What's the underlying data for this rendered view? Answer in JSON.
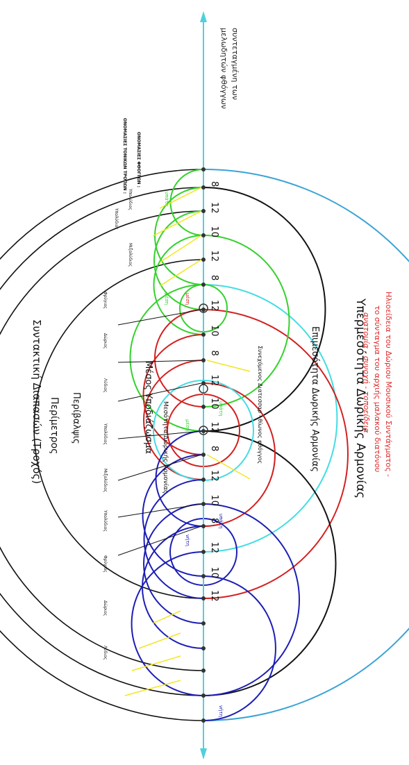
{
  "title": {
    "line1": "Ηλιοείδεια του Δώριου Μουσικού Συντάγματος -",
    "line2": "το σύνταγμα του αρχιής μαλακού διατόνου",
    "line3": "ανατομία - συνοχή - τοποείδεια"
  },
  "axis_label": {
    "line1": "συντεταγμένη των",
    "line2": "μελωδητών φθόγγων"
  },
  "row_heads": {
    "names": "ΟΝΟΜΑΣΙΕΣ ΦΘΟΓΓΩΝ :",
    "tones": "ΟΝΟΜΑΣΙΕΣ ΤΟΝΙΚΩΝ ΤΡΟΠΩΝ :"
  },
  "interval_numbers": [
    "8",
    "12",
    "10",
    "12",
    "8",
    "12",
    "10",
    "8",
    "12",
    "10",
    "12",
    "8",
    "12",
    "10",
    "8",
    "12",
    "10",
    "12"
  ],
  "arc_labels": {
    "hyper": "Υπερμεσότητα Δωρικής Αρμονίας",
    "epi": "Επιμεσότητα Δωρικής Αρμονίας",
    "mese": "Μεσότητα Δωρικής Αρμονίας",
    "synemm": "Συνεχόμενος Διατεσσαρ - θίωνος φθόγγος",
    "mesos": "Μέσος Υποδιάζωσμα",
    "peri_small": "Περίβαλψις",
    "perimetros": "Περίμετρος",
    "syntaktike": "Συντακτική Διαπασών (Τροχός)"
  },
  "small_labels": [
    "υπάτη",
    "μέση",
    "μέση",
    "υπάτη",
    "νήτη",
    "μέση",
    "νήτη",
    "υπάτη",
    "νήτη"
  ],
  "note_names": [
    "Υπολύδιος",
    "Μιξολύδιος",
    "Υπολύδιος",
    "Φρύγιος",
    "Δώριος",
    "Λύδιος",
    "Υπολύδιος",
    "Μιξολύδιος",
    "Υπολύδιος",
    "Φρύγιος",
    "Δώριος",
    "Λύδιος"
  ],
  "colors": {
    "axis": "#4fd0dc",
    "hyper": "#3aa3d4",
    "epi": "#42dde2",
    "green": "#34d12c",
    "red": "#d32020",
    "blue": "#1c1eb4",
    "black": "#111111",
    "yellow": "#f2e61f",
    "title": "#e02828"
  }
}
